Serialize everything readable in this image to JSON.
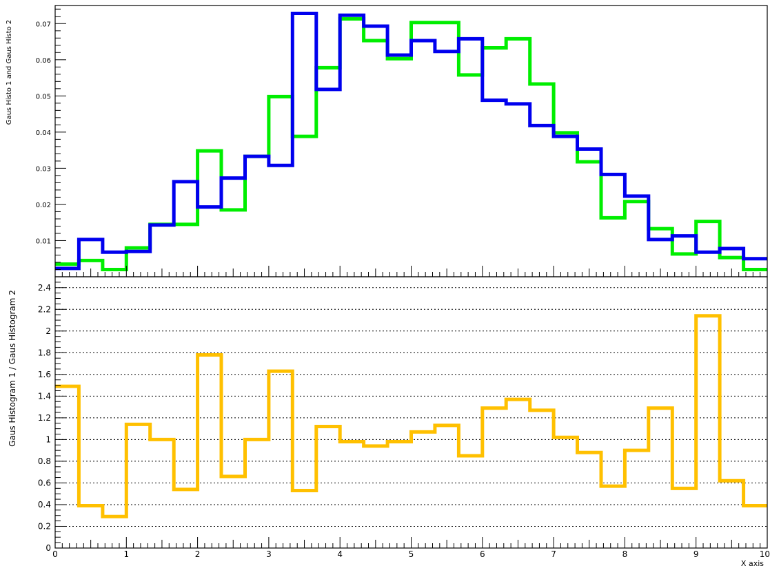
{
  "chart_data": [
    {
      "type": "line",
      "step": true,
      "panel": "upper",
      "xlim": [
        0,
        10
      ],
      "ylim": [
        0,
        0.075
      ],
      "ylabel": "Gaus Histo 1 and Gaus Histo 2",
      "yticks": [
        "0.01",
        "0.02",
        "0.03",
        "0.04",
        "0.05",
        "0.06",
        "0.07"
      ],
      "grid": false,
      "bin_edges": [
        0,
        0.333,
        0.667,
        1.0,
        1.333,
        1.667,
        2.0,
        2.333,
        2.667,
        3.0,
        3.333,
        3.667,
        4.0,
        4.333,
        4.667,
        5.0,
        5.333,
        5.667,
        6.0,
        6.333,
        6.667,
        7.0,
        7.333,
        7.667,
        8.0,
        8.333,
        8.667,
        9.0,
        9.333,
        9.667,
        10.0
      ],
      "series": [
        {
          "color": "#00ee00",
          "values": [
            0.0035,
            0.0045,
            0.002,
            0.008,
            0.0145,
            0.0145,
            0.0348,
            0.0185,
            0.0333,
            0.0498,
            0.0388,
            0.0578,
            0.0713,
            0.0653,
            0.0603,
            0.0703,
            0.0703,
            0.0558,
            0.0633,
            0.0658,
            0.0533,
            0.0398,
            0.0318,
            0.0163,
            0.0208,
            0.0133,
            0.0063,
            0.0153,
            0.0053,
            0.002
          ]
        },
        {
          "color": "#0000ee",
          "values": [
            0.0023,
            0.0103,
            0.0068,
            0.007,
            0.0143,
            0.0263,
            0.0193,
            0.0273,
            0.0333,
            0.0308,
            0.0728,
            0.0518,
            0.0723,
            0.0693,
            0.0613,
            0.0653,
            0.0623,
            0.0658,
            0.0488,
            0.0478,
            0.0418,
            0.0388,
            0.0353,
            0.0283,
            0.0223,
            0.0103,
            0.0113,
            0.0068,
            0.0078,
            0.005
          ]
        }
      ]
    },
    {
      "type": "line",
      "step": true,
      "panel": "lower",
      "xlim": [
        0,
        10
      ],
      "ylim": [
        0,
        2.5
      ],
      "xlabel": "X axis",
      "ylabel": "Gaus Histogram 1 / Gaus Histogram 2",
      "xticks": [
        "0",
        "1",
        "2",
        "3",
        "4",
        "5",
        "6",
        "7",
        "8",
        "9",
        "10"
      ],
      "yticks": [
        "0",
        "0.2",
        "0.4",
        "0.6",
        "0.8",
        "1",
        "1.2",
        "1.4",
        "1.6",
        "1.8",
        "2",
        "2.2",
        "2.4"
      ],
      "grid": true,
      "bin_edges": [
        0,
        0.333,
        0.667,
        1.0,
        1.333,
        1.667,
        2.0,
        2.333,
        2.667,
        3.0,
        3.333,
        3.667,
        4.0,
        4.333,
        4.667,
        5.0,
        5.333,
        5.667,
        6.0,
        6.333,
        6.667,
        7.0,
        7.333,
        7.667,
        8.0,
        8.333,
        8.667,
        9.0,
        9.333,
        9.667,
        10.0
      ],
      "series": [
        {
          "color": "#ffc000",
          "values": [
            1.49,
            0.39,
            0.29,
            1.14,
            1.0,
            0.54,
            1.78,
            0.66,
            1.0,
            1.63,
            0.53,
            1.12,
            0.98,
            0.94,
            0.98,
            1.07,
            1.13,
            0.85,
            1.29,
            1.37,
            1.27,
            1.02,
            0.88,
            0.57,
            0.9,
            1.29,
            0.55,
            2.14,
            0.62,
            0.39
          ]
        }
      ]
    }
  ]
}
